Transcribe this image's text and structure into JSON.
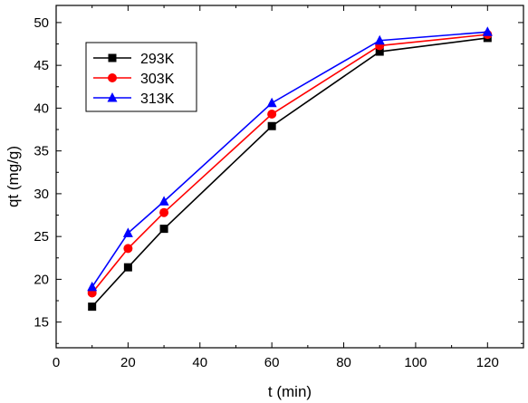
{
  "chart_data": {
    "type": "line",
    "title": "",
    "xlabel": "t (min)",
    "ylabel": "qt (mg/g)",
    "xlim": [
      0,
      130
    ],
    "ylim": [
      12,
      52
    ],
    "x_ticks": [
      0,
      20,
      40,
      60,
      80,
      100,
      120
    ],
    "y_ticks": [
      15,
      20,
      25,
      30,
      35,
      40,
      45,
      50
    ],
    "grid": false,
    "legend_position": "top-left",
    "x": [
      10,
      20,
      30,
      60,
      90,
      120
    ],
    "series": [
      {
        "name": "293K",
        "color": "#000000",
        "marker": "square",
        "values": [
          16.8,
          21.4,
          25.9,
          37.9,
          46.6,
          48.2
        ]
      },
      {
        "name": "303K",
        "color": "#ff0000",
        "marker": "circle",
        "values": [
          18.4,
          23.6,
          27.8,
          39.3,
          47.3,
          48.6
        ]
      },
      {
        "name": "313K",
        "color": "#0000ff",
        "marker": "triangle",
        "values": [
          19.1,
          25.4,
          29.1,
          40.6,
          47.9,
          48.9
        ]
      }
    ]
  }
}
